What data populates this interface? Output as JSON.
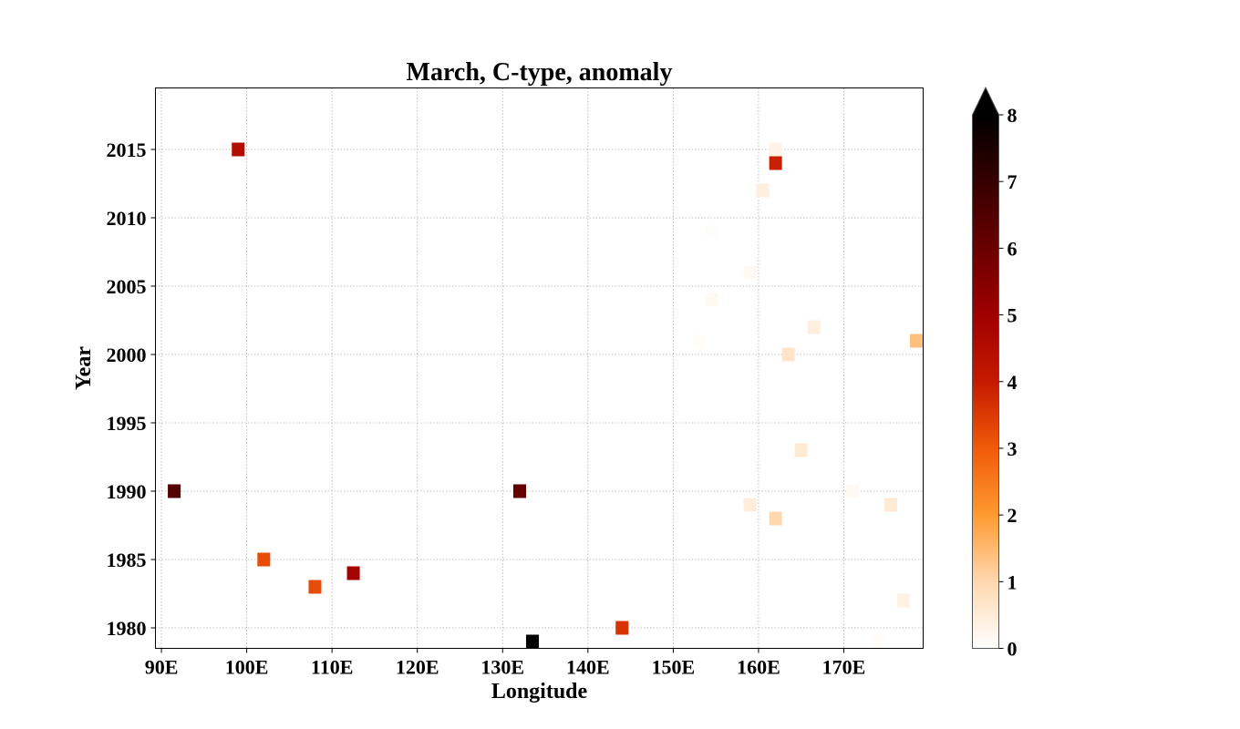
{
  "chart_data": {
    "type": "heatmap",
    "title": "March, C-type, anomaly",
    "xlabel": "Longitude",
    "ylabel": "Year",
    "xlim": [
      89.3,
      179.3
    ],
    "ylim": [
      1978.5,
      2019.5
    ],
    "x_ticks": [
      90,
      100,
      110,
      120,
      130,
      140,
      150,
      160,
      170
    ],
    "x_tick_labels": [
      "90E",
      "100E",
      "110E",
      "120E",
      "130E",
      "140E",
      "150E",
      "160E",
      "170E"
    ],
    "y_ticks": [
      1980,
      1985,
      1990,
      1995,
      2000,
      2005,
      2010,
      2015
    ],
    "y_tick_labels": [
      "1980",
      "1985",
      "1990",
      "1995",
      "2000",
      "2005",
      "2010",
      "2015"
    ],
    "grid": true,
    "colorbar": {
      "min": 0,
      "max": 8,
      "ticks": [
        0,
        1,
        2,
        3,
        4,
        5,
        6,
        7,
        8
      ],
      "tick_labels": [
        "0",
        "1",
        "2",
        "3",
        "4",
        "5",
        "6",
        "7",
        "8"
      ],
      "extend": "max",
      "colormap": "gist_heat_r"
    },
    "points": [
      {
        "x": 99.0,
        "y": 2015,
        "value": 4.5
      },
      {
        "x": 91.5,
        "y": 1990,
        "value": 6.4
      },
      {
        "x": 102.0,
        "y": 1985,
        "value": 3.2
      },
      {
        "x": 108.0,
        "y": 1983,
        "value": 3.2
      },
      {
        "x": 112.5,
        "y": 1984,
        "value": 4.9
      },
      {
        "x": 132.0,
        "y": 1990,
        "value": 6.1
      },
      {
        "x": 133.5,
        "y": 1979,
        "value": 8.0
      },
      {
        "x": 144.0,
        "y": 1980,
        "value": 3.6
      },
      {
        "x": 162.0,
        "y": 2015,
        "value": 0.3
      },
      {
        "x": 162.0,
        "y": 2014,
        "value": 3.9
      },
      {
        "x": 160.5,
        "y": 2012,
        "value": 0.4
      },
      {
        "x": 154.5,
        "y": 2009,
        "value": 0.05
      },
      {
        "x": 159.0,
        "y": 2006,
        "value": 0.15
      },
      {
        "x": 154.5,
        "y": 2004,
        "value": 0.15
      },
      {
        "x": 166.5,
        "y": 2002,
        "value": 0.4
      },
      {
        "x": 153.0,
        "y": 2001,
        "value": 0.08
      },
      {
        "x": 163.5,
        "y": 2000,
        "value": 0.7
      },
      {
        "x": 178.5,
        "y": 2001,
        "value": 1.4
      },
      {
        "x": 165.0,
        "y": 1993,
        "value": 0.55
      },
      {
        "x": 171.0,
        "y": 1990,
        "value": 0.15
      },
      {
        "x": 159.0,
        "y": 1989,
        "value": 0.45
      },
      {
        "x": 175.5,
        "y": 1989,
        "value": 0.55
      },
      {
        "x": 162.0,
        "y": 1988,
        "value": 1.0
      },
      {
        "x": 177.0,
        "y": 1982,
        "value": 0.35
      },
      {
        "x": 174.0,
        "y": 1979,
        "value": 0.08
      }
    ]
  }
}
